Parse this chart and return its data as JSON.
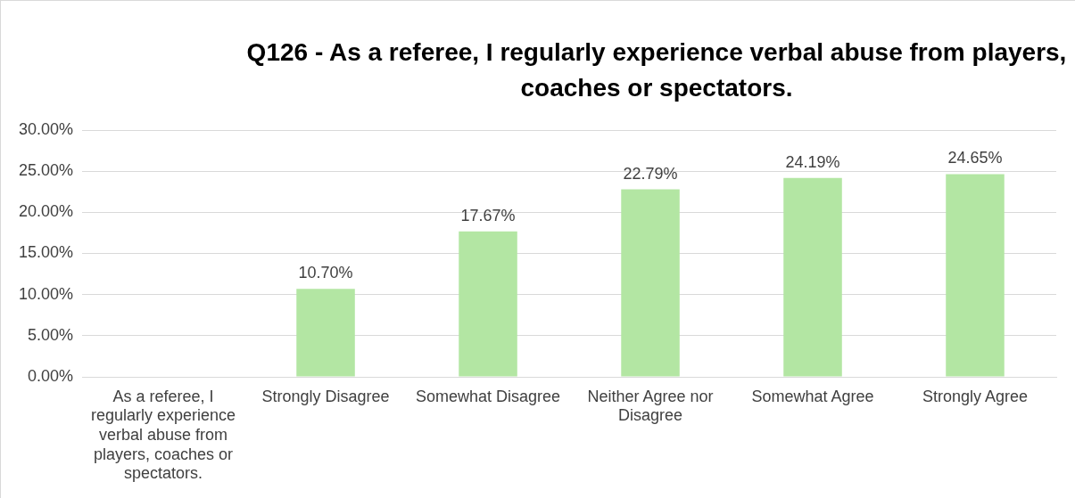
{
  "chart_data": {
    "type": "bar",
    "title": "Q126 - As a referee, I regularly experience verbal abuse from players, coaches or spectators.",
    "categories": [
      "As a referee, I regularly experience verbal abuse from players, coaches or spectators.",
      "Strongly Disagree",
      "Somewhat Disagree",
      "Neither Agree nor Disagree",
      "Somewhat Agree",
      "Strongly Agree"
    ],
    "values": [
      null,
      10.7,
      17.67,
      22.79,
      24.19,
      24.65
    ],
    "value_labels": [
      null,
      "10.70%",
      "17.67%",
      "22.79%",
      "24.19%",
      "24.65%"
    ],
    "color": "#b3e6a3",
    "ylim": [
      0,
      30
    ],
    "yticks": [
      {
        "value": 0,
        "label": "0.00%"
      },
      {
        "value": 5,
        "label": "5.00%"
      },
      {
        "value": 10,
        "label": "10.00%"
      },
      {
        "value": 15,
        "label": "15.00%"
      },
      {
        "value": 20,
        "label": "20.00%"
      },
      {
        "value": 25,
        "label": "25.00%"
      },
      {
        "value": 30,
        "label": "30.00%"
      }
    ],
    "grid": "y"
  }
}
